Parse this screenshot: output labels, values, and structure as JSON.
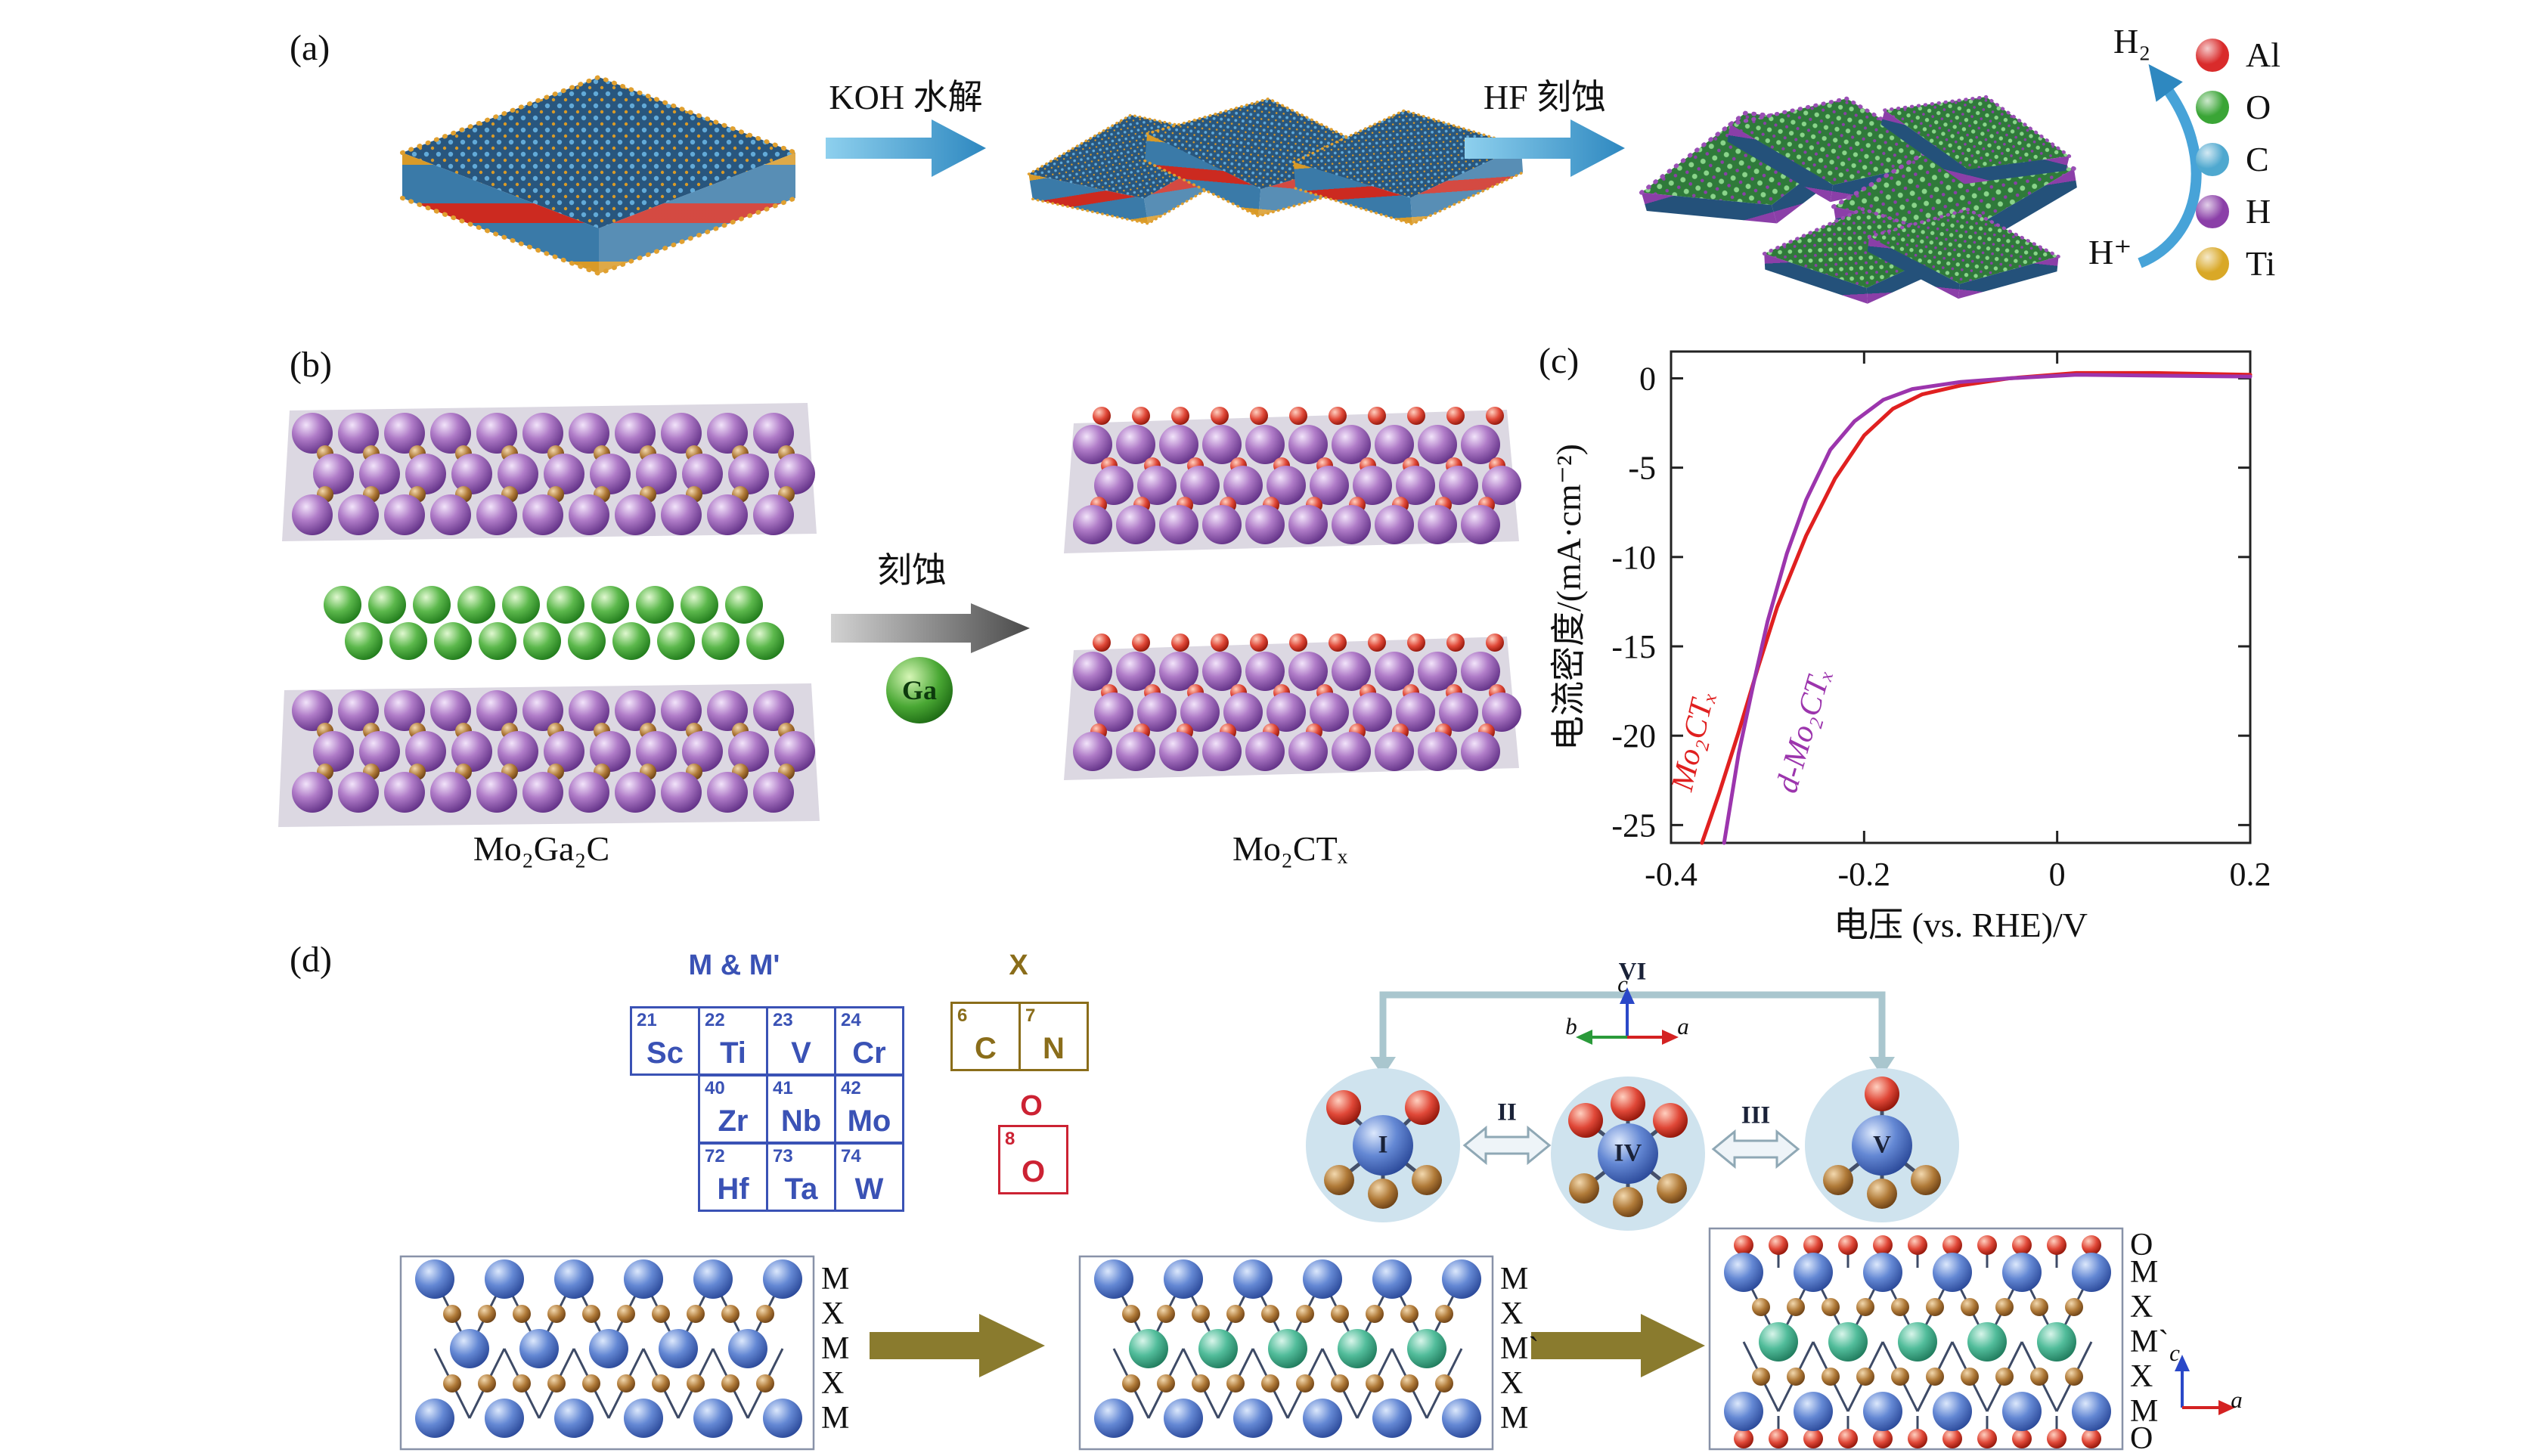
{
  "figure": {
    "panel_a_label": "(a)",
    "panel_b_label": "(b)",
    "panel_c_label": "(c)",
    "panel_d_label": "(d)"
  },
  "panel_a": {
    "step1_label": "KOH 水解",
    "step2_label": "HF 刻蚀",
    "h2": "H₂",
    "h_plus": "H⁺",
    "legend": [
      {
        "symbol": "Al",
        "color": "#d92b2b"
      },
      {
        "symbol": "O",
        "color": "#3aa536"
      },
      {
        "symbol": "C",
        "color": "#4fa8cf"
      },
      {
        "symbol": "H",
        "color": "#8b3fa8"
      },
      {
        "symbol": "Ti",
        "color": "#d9a827"
      }
    ]
  },
  "panel_b": {
    "etch_label": "刻蚀",
    "ga_label": "Ga",
    "left_formula": "Mo₂Ga₂C",
    "right_formula": "Mo₂CTₓ"
  },
  "panel_c": {
    "chart_data": {
      "type": "line",
      "title": "",
      "xlabel": "电压 (vs. RHE)/V",
      "ylabel": "电流密度/(mA·cm⁻²)",
      "xlim": [
        -0.4,
        0.2
      ],
      "ylim": [
        -26,
        1.5
      ],
      "xticks": [
        -0.4,
        -0.2,
        0,
        0.2
      ],
      "yticks": [
        0,
        -5,
        -10,
        -15,
        -20,
        -25
      ],
      "grid": false,
      "legend_position": "on-curve",
      "series": [
        {
          "name": "Mo₂CTₓ",
          "color": "#e02020",
          "x": [
            0.2,
            0.1,
            0.02,
            -0.05,
            -0.1,
            -0.14,
            -0.17,
            -0.2,
            -0.23,
            -0.26,
            -0.29,
            -0.31,
            -0.33,
            -0.35,
            -0.368
          ],
          "y": [
            0.2,
            0.3,
            0.3,
            0.0,
            -0.4,
            -0.9,
            -1.7,
            -3.2,
            -5.6,
            -8.8,
            -12.8,
            -16.2,
            -19.8,
            -23.2,
            -26.0
          ]
        },
        {
          "name": "d-Mo₂CTₓ",
          "color": "#9c35ad",
          "x": [
            0.2,
            0.1,
            0.02,
            -0.05,
            -0.1,
            -0.15,
            -0.18,
            -0.21,
            -0.235,
            -0.26,
            -0.28,
            -0.3,
            -0.315,
            -0.33,
            -0.345
          ],
          "y": [
            0.1,
            0.15,
            0.2,
            0.0,
            -0.2,
            -0.6,
            -1.2,
            -2.4,
            -4.0,
            -6.8,
            -9.8,
            -13.6,
            -17.2,
            -21.0,
            -26.0
          ]
        }
      ]
    }
  },
  "panel_d": {
    "mm_title": "M & M'",
    "x_title": "X",
    "o_title": "O",
    "periodic": [
      {
        "num": "21",
        "sym": "Sc"
      },
      {
        "num": "22",
        "sym": "Ti"
      },
      {
        "num": "23",
        "sym": "V"
      },
      {
        "num": "24",
        "sym": "Cr"
      },
      {
        "num": "40",
        "sym": "Zr"
      },
      {
        "num": "41",
        "sym": "Nb"
      },
      {
        "num": "42",
        "sym": "Mo"
      },
      {
        "num": "72",
        "sym": "Hf"
      },
      {
        "num": "73",
        "sym": "Ta"
      },
      {
        "num": "74",
        "sym": "W"
      }
    ],
    "x_cells": [
      {
        "num": "6",
        "sym": "C"
      },
      {
        "num": "7",
        "sym": "N"
      }
    ],
    "o_cell": {
      "num": "8",
      "sym": "O"
    },
    "roman": {
      "i": "I",
      "ii": "II",
      "iii": "III",
      "iv": "IV",
      "v": "V",
      "vi": "VI"
    },
    "axes_top": {
      "a": "a",
      "b": "b",
      "c": "c"
    },
    "axes_bottom": {
      "a": "a",
      "c": "c"
    },
    "lattice1_labels": [
      "M",
      "X",
      "M",
      "X",
      "M"
    ],
    "lattice2_labels": [
      "M",
      "X",
      "M`",
      "X",
      "M"
    ],
    "lattice3_labels": [
      "O",
      "M",
      "X",
      "M`",
      "X",
      "M",
      "O"
    ]
  }
}
